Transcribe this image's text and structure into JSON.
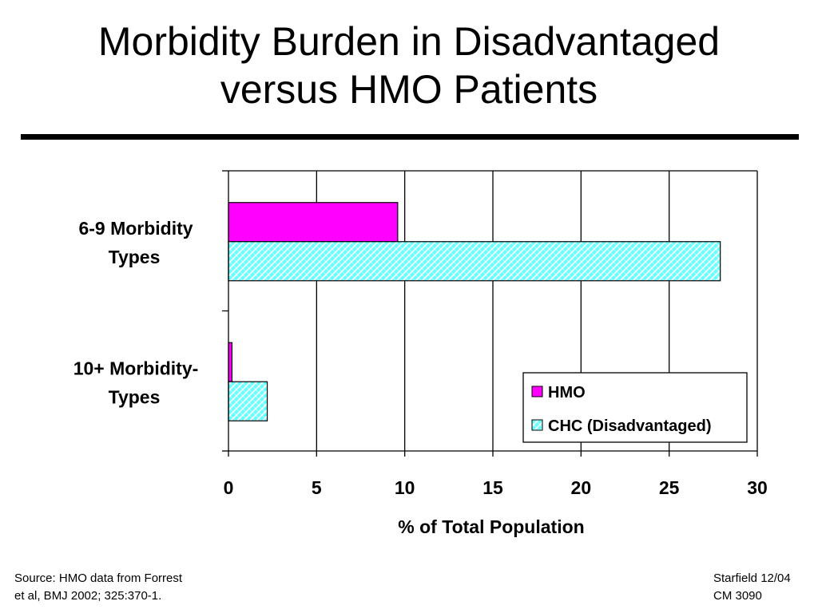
{
  "slide": {
    "title_line1": "Morbidity Burden in Disadvantaged",
    "title_line2": "versus HMO Patients",
    "source_line1": "Source: HMO data from Forrest",
    "source_line2": "et al, BMJ 2002; 325:370-1.",
    "credit_line1": "Starfield 12/04",
    "credit_line2": "CM 3090"
  },
  "chart_data": {
    "type": "bar",
    "orientation": "horizontal",
    "categories": [
      {
        "line1": "6-9 Morbidity",
        "line2": "Types"
      },
      {
        "line1": "10+ Morbidity-",
        "line2": "Types"
      }
    ],
    "series": [
      {
        "name": "HMO",
        "values": [
          9.6,
          0.2
        ],
        "color": "#ff00ff",
        "pattern": "solid"
      },
      {
        "name": "CHC (Disadvantaged)",
        "values": [
          27.9,
          2.2
        ],
        "color": "#66ffff",
        "pattern": "hatched"
      }
    ],
    "xlabel": "% of Total Population",
    "xlim": [
      0,
      30
    ],
    "xticks": [
      "0",
      "5",
      "10",
      "15",
      "20",
      "25",
      "30"
    ],
    "grid": "vertical",
    "legend_position": "bottom-right"
  }
}
